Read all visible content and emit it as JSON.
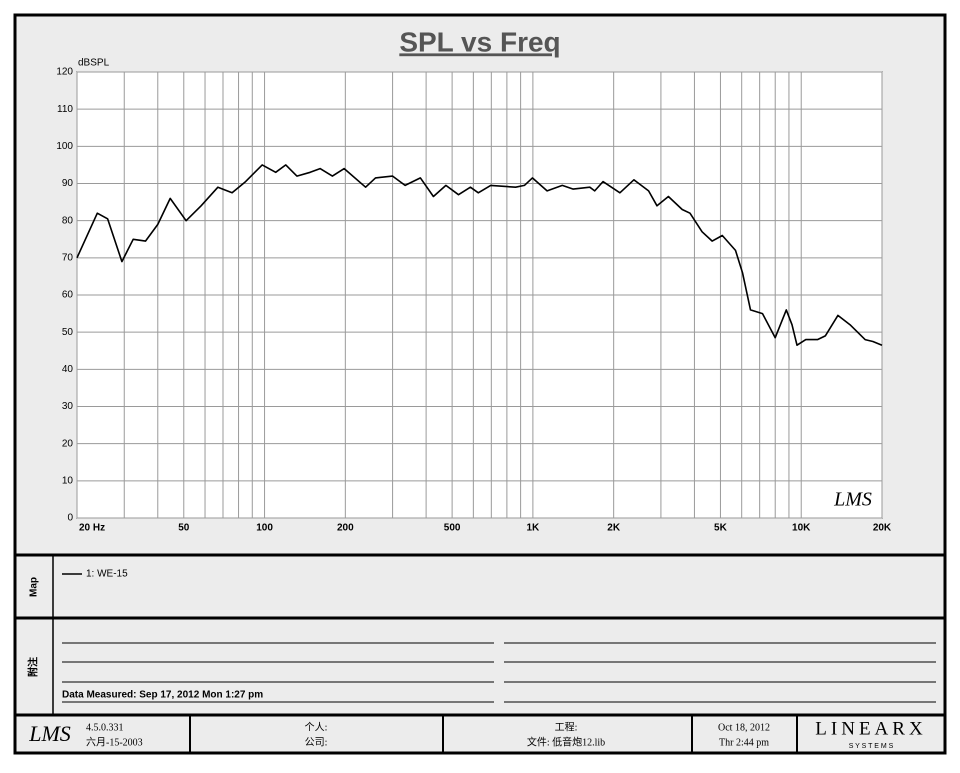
{
  "chart_data": {
    "type": "line",
    "title": "SPL vs Freq",
    "ylabel": "dBSPL",
    "watermark": "LMS",
    "xscale": "log",
    "xlim": [
      20,
      20000
    ],
    "ylim": [
      0,
      120
    ],
    "xticks": [
      {
        "value": 20,
        "label": "20  Hz"
      },
      50,
      100,
      200,
      500,
      {
        "value": 1000,
        "label": "1K"
      },
      {
        "value": 2000,
        "label": "2K"
      },
      {
        "value": 5000,
        "label": "5K"
      },
      {
        "value": 10000,
        "label": "10K"
      },
      {
        "value": 20000,
        "label": "20K"
      }
    ],
    "xminor": [
      30,
      40,
      60,
      70,
      80,
      90,
      300,
      400,
      600,
      700,
      800,
      900,
      3000,
      4000,
      6000,
      7000,
      8000,
      9000
    ],
    "yticks": [
      0,
      10,
      20,
      30,
      40,
      50,
      60,
      70,
      80,
      90,
      100,
      110,
      120
    ],
    "grid": true,
    "x": [
      20,
      23.8,
      26,
      29.4,
      32.4,
      36,
      40,
      44.5,
      51,
      58,
      67,
      75.7,
      85,
      98,
      110,
      120,
      132,
      148,
      161,
      179,
      198,
      238,
      259,
      300,
      334,
      381,
      426,
      474,
      528,
      585,
      626,
      696,
      862,
      930,
      996,
      1130,
      1287,
      1413,
      1630,
      1700,
      1825,
      2110,
      2380,
      2700,
      2900,
      3200,
      3600,
      3850,
      4270,
      4660,
      5080,
      5690,
      6040,
      6470,
      7170,
      8000,
      8800,
      9240,
      9640,
      10400,
      11500,
      12300,
      13700,
      15200,
      17300,
      18500,
      20000
    ],
    "series": [
      {
        "name": "1: WE-15",
        "color": "#000000",
        "values": [
          70,
          82,
          80.5,
          69,
          75,
          74.5,
          79,
          86,
          80,
          84,
          89,
          87.5,
          90.5,
          95,
          93,
          95,
          92,
          93,
          94,
          92,
          94,
          89,
          91.5,
          92,
          89.5,
          91.5,
          86.5,
          89.5,
          87,
          89,
          87.5,
          89.5,
          89,
          89.5,
          91.5,
          88,
          89.5,
          88.5,
          89,
          88,
          90.5,
          87.5,
          91,
          88,
          84,
          86.5,
          83,
          82,
          77,
          74.5,
          76,
          72,
          66,
          56,
          55,
          48.5,
          56,
          52,
          46.5,
          48,
          48,
          49,
          54.5,
          52,
          48,
          47.5,
          46.5
        ]
      }
    ]
  },
  "legend_panel": {
    "label": "Map"
  },
  "notes_panel": {
    "label": "附注",
    "measured": "Data Measured: Sep 17, 2012  Mon  1:27 pm"
  },
  "footer": {
    "logo": "LMS",
    "version": "4.5.0.331",
    "version_date": "六月-15-2003",
    "personal": "个人:",
    "company": "公司:",
    "project": "工程:",
    "file": "文件: 低音炮12.lib",
    "date": "Oct 18, 2012",
    "time": "Thr  2:44 pm",
    "brand": "LINEARX",
    "brand_sub": "S Y S T E M S"
  }
}
